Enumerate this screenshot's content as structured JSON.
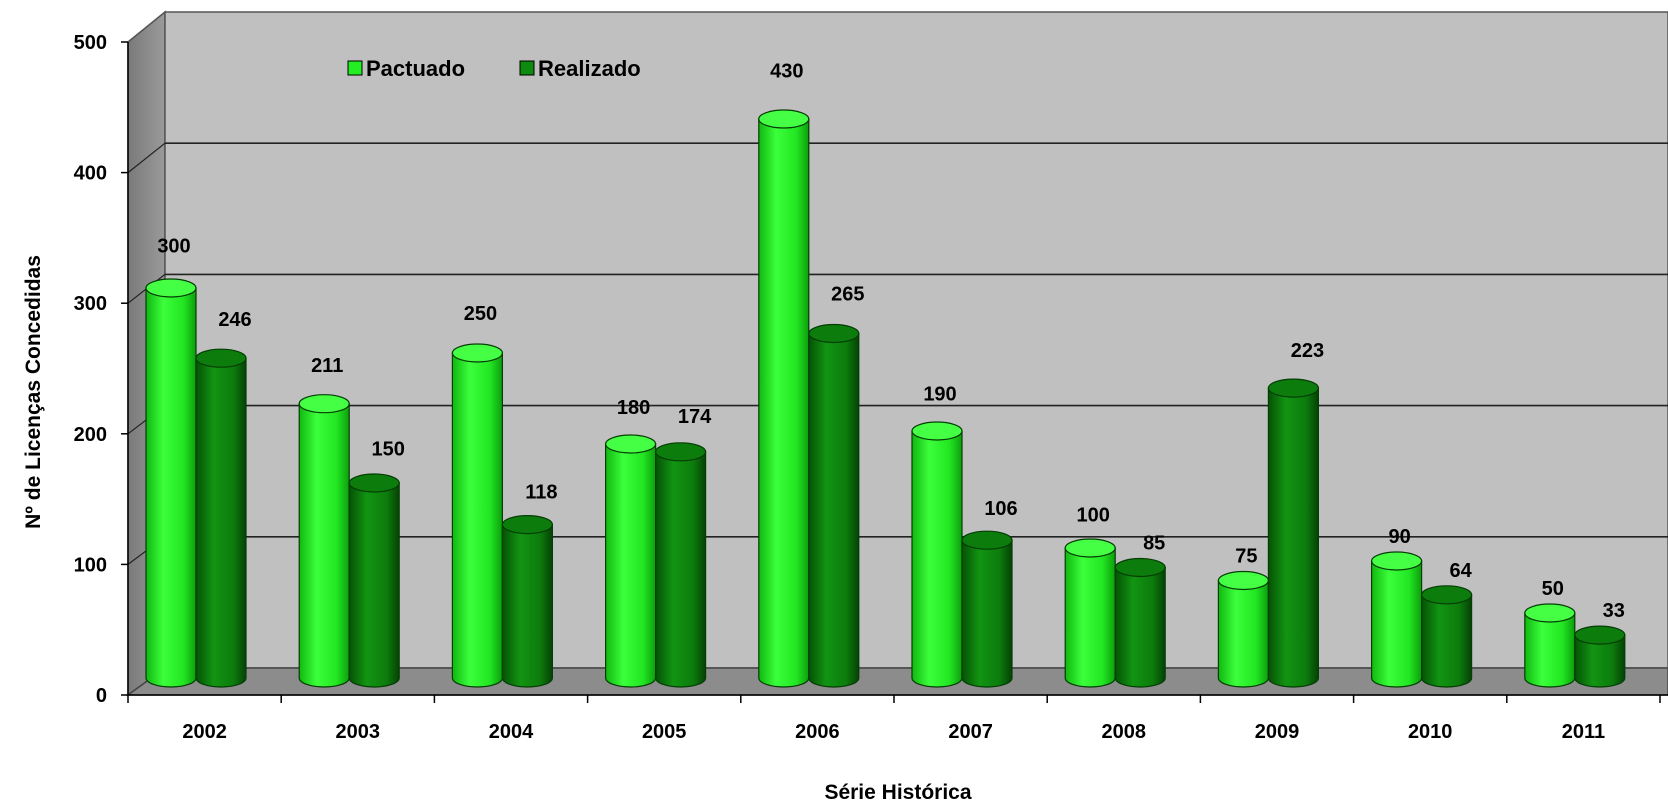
{
  "chart_data": {
    "type": "bar",
    "title": "",
    "xlabel": "Série Histórica",
    "ylabel": "Nº de Licenças Concedidas",
    "ylim": [
      0,
      500
    ],
    "yticks": [
      "0",
      "100",
      "200",
      "300",
      "400",
      "500"
    ],
    "grid": true,
    "legend_position": "top-left",
    "categories": [
      "2002",
      "2003",
      "2004",
      "2005",
      "2006",
      "2007",
      "2008",
      "2009",
      "2010",
      "2011"
    ],
    "series": [
      {
        "name": "Pactuado",
        "color": "#22ee22",
        "values": [
          300,
          211,
          250,
          180,
          430,
          190,
          100,
          75,
          90,
          50
        ]
      },
      {
        "name": "Realizado",
        "color": "#0e8a0e",
        "values": [
          246,
          150,
          118,
          174,
          265,
          106,
          85,
          223,
          64,
          33
        ]
      }
    ]
  }
}
